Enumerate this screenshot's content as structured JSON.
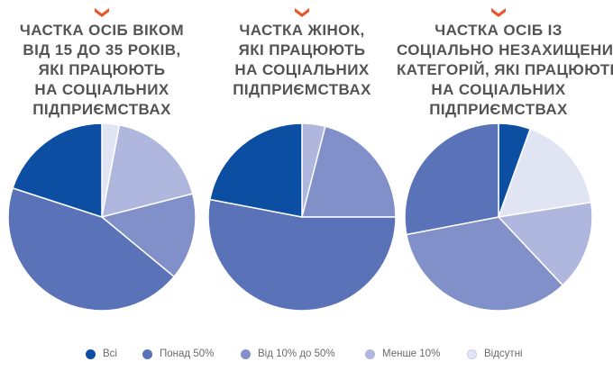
{
  "colors": {
    "accent_marker": "#e4572e",
    "title_text": "#545454",
    "legend_text": "#6a6a6a",
    "slice_stroke": "#ffffff"
  },
  "legend": [
    {
      "label": "Всі",
      "color": "#0c4ea1"
    },
    {
      "label": "Понад 50%",
      "color": "#5a72b8"
    },
    {
      "label": "Від 10% до 50%",
      "color": "#8290c9"
    },
    {
      "label": "Менше 10%",
      "color": "#b0b7de"
    },
    {
      "label": "Відсутні",
      "color": "#e1e4f2"
    }
  ],
  "chart_data": [
    {
      "type": "pie",
      "title_lines": [
        "ЧАСТКА ОСІБ ВІКОМ",
        "ВІД 15 ДО 35 РОКІВ,",
        "ЯКІ ПРАЦЮЮТЬ",
        "НА СОЦІАЛЬНИХ",
        "ПІДПРИЄМСТВАХ"
      ],
      "slices": [
        {
          "label": "Відсутні",
          "value": 3
        },
        {
          "label": "Менше 10%",
          "value": 18
        },
        {
          "label": "Від 10% до 50%",
          "value": 15
        },
        {
          "label": "Понад 50%",
          "value": 44
        },
        {
          "label": "Всі",
          "value": 20
        }
      ]
    },
    {
      "type": "pie",
      "title_lines": [
        "ЧАСТКА ЖІНОК,",
        "ЯКІ ПРАЦЮЮТЬ",
        "НА СОЦІАЛЬНИХ",
        "ПІДПРИЄМСТВАХ"
      ],
      "slices": [
        {
          "label": "Менше 10%",
          "value": 4
        },
        {
          "label": "Від 10% до 50%",
          "value": 21
        },
        {
          "label": "Понад 50%",
          "value": 53
        },
        {
          "label": "Всі",
          "value": 22
        }
      ]
    },
    {
      "type": "pie",
      "title_lines": [
        "ЧАСТКА ОСІБ ІЗ",
        "СОЦІАЛЬНО НЕЗАХИЩЕНИХ",
        "КАТЕГОРІЙ, ЯКІ ПРАЦЮЮТЬ",
        "НА СОЦІАЛЬНИХ",
        "ПІДПРИЄМСТВАХ"
      ],
      "slices": [
        {
          "label": "Всі",
          "value": 5.5
        },
        {
          "label": "Відсутні",
          "value": 17
        },
        {
          "label": "Менше 10%",
          "value": 15.5
        },
        {
          "label": "Від 10% до 50%",
          "value": 34
        },
        {
          "label": "Понад 50%",
          "value": 28
        }
      ]
    }
  ]
}
